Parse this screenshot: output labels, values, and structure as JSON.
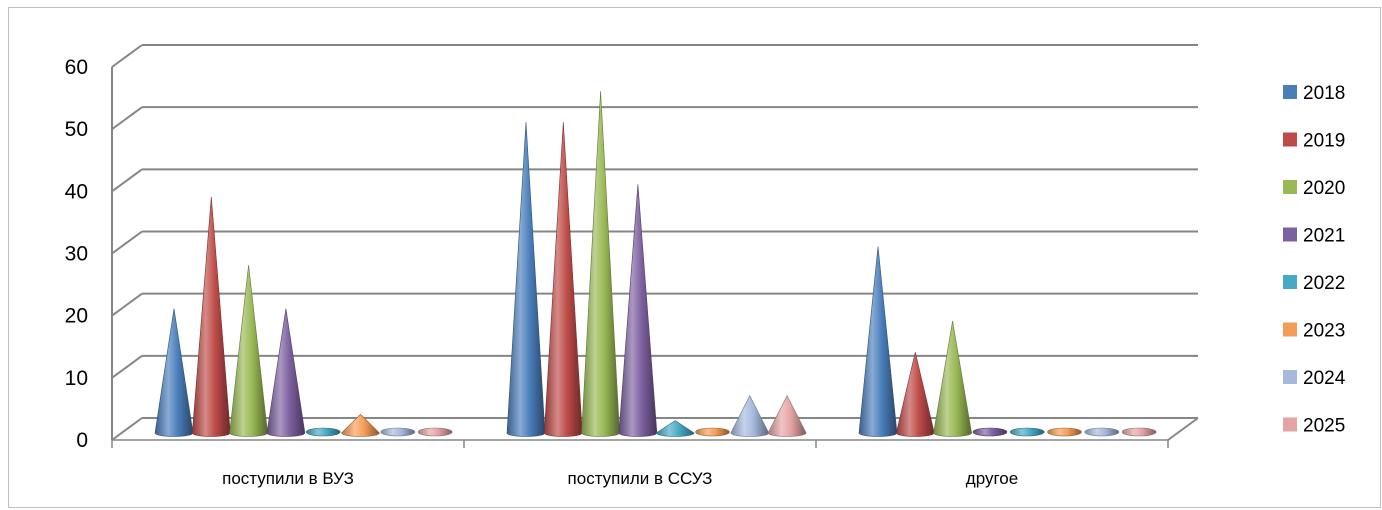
{
  "chart_data": {
    "type": "bar",
    "style": "3d-cone",
    "categories": [
      "поступили в ВУЗ",
      "поступили в ССУЗ",
      "другое"
    ],
    "series": [
      {
        "name": "2018",
        "color": "#4A7EBB",
        "values": [
          20,
          50,
          30
        ]
      },
      {
        "name": "2019",
        "color": "#BE4B48",
        "values": [
          38,
          50,
          13
        ]
      },
      {
        "name": "2020",
        "color": "#98B954",
        "values": [
          27,
          55,
          18
        ]
      },
      {
        "name": "2021",
        "color": "#7D60A0",
        "values": [
          20,
          40,
          0
        ]
      },
      {
        "name": "2022",
        "color": "#46AAC5",
        "values": [
          0,
          2,
          0
        ]
      },
      {
        "name": "2023",
        "color": "#F59D56",
        "values": [
          3,
          0,
          0
        ]
      },
      {
        "name": "2024",
        "color": "#A5B9DD",
        "values": [
          0,
          6,
          0
        ]
      },
      {
        "name": "2025",
        "color": "#E3A5A3",
        "values": [
          0,
          6,
          0
        ]
      }
    ],
    "y_ticks": [
      "0",
      "10",
      "20",
      "30",
      "40",
      "50",
      "60"
    ],
    "ylim": [
      0,
      60
    ],
    "grid": true,
    "legend_position": "right",
    "title": "",
    "xlabel": "",
    "ylabel": ""
  }
}
